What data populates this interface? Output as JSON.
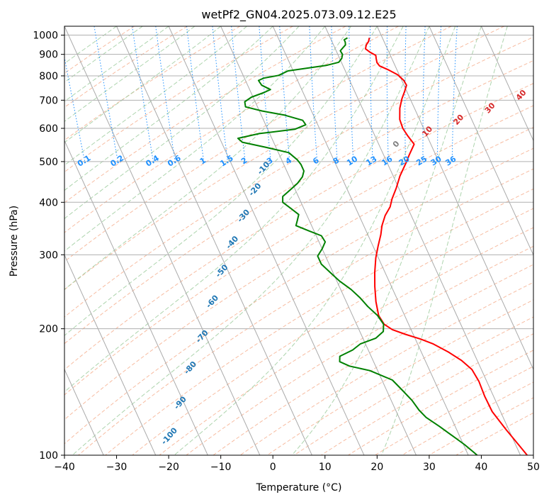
{
  "chart_data": {
    "type": "line",
    "title": "wetPf2_GN04.2025.073.09.12.E25",
    "xlabel": "Temperature (°C)",
    "ylabel": "Pressure (hPa)",
    "xlim": [
      -40,
      50
    ],
    "ylim": [
      1050,
      100
    ],
    "y_scale": "log",
    "x_ticks": [
      -40,
      -30,
      -20,
      -10,
      0,
      10,
      20,
      30,
      40,
      50
    ],
    "y_ticks": [
      1000,
      900,
      800,
      700,
      600,
      500,
      400,
      300,
      200,
      100
    ],
    "grid": true,
    "series": [
      {
        "role": "temperature",
        "color": "#ff0000",
        "points": [
          [
            17.5,
            985
          ],
          [
            17.0,
            965
          ],
          [
            16.3,
            948
          ],
          [
            15.8,
            928
          ],
          [
            16.4,
            910
          ],
          [
            17.2,
            895
          ],
          [
            17.0,
            880
          ],
          [
            16.8,
            860
          ],
          [
            17.0,
            845
          ],
          [
            18.4,
            826
          ],
          [
            19.7,
            805
          ],
          [
            20.4,
            780
          ],
          [
            20.5,
            760
          ],
          [
            19.6,
            735
          ],
          [
            18.4,
            705
          ],
          [
            17.2,
            670
          ],
          [
            16.2,
            630
          ],
          [
            16.0,
            600
          ],
          [
            16.3,
            575
          ],
          [
            16.8,
            550
          ],
          [
            15.0,
            520
          ],
          [
            13.7,
            498
          ],
          [
            11.3,
            462
          ],
          [
            9.5,
            432
          ],
          [
            7.8,
            408
          ],
          [
            6.7,
            390
          ],
          [
            5.0,
            372
          ],
          [
            3.5,
            352
          ],
          [
            2.5,
            335
          ],
          [
            1.0,
            315
          ],
          [
            -0.5,
            295
          ],
          [
            -2.0,
            272
          ],
          [
            -3.2,
            252
          ],
          [
            -4.3,
            232
          ],
          [
            -5.0,
            215
          ],
          [
            -4.7,
            205
          ],
          [
            -3.6,
            199
          ],
          [
            -1.5,
            194
          ],
          [
            1.0,
            189
          ],
          [
            3.0,
            184
          ],
          [
            5.2,
            176
          ],
          [
            7.0,
            168
          ],
          [
            8.2,
            160
          ],
          [
            8.5,
            150
          ],
          [
            8.3,
            138
          ],
          [
            8.4,
            127
          ],
          [
            9.5,
            115
          ],
          [
            10.8,
            104
          ],
          [
            11.3,
            100
          ]
        ]
      },
      {
        "role": "dewpoint",
        "color": "#008000",
        "points": [
          [
            13.3,
            985
          ],
          [
            12.5,
            975
          ],
          [
            12.5,
            962
          ],
          [
            12.3,
            948
          ],
          [
            11.5,
            932
          ],
          [
            10.8,
            918
          ],
          [
            10.9,
            900
          ],
          [
            10.4,
            880
          ],
          [
            9.5,
            862
          ],
          [
            6.8,
            847
          ],
          [
            -1.0,
            822
          ],
          [
            -3.2,
            802
          ],
          [
            -6.3,
            790
          ],
          [
            -7.5,
            780
          ],
          [
            -7.3,
            760
          ],
          [
            -6.0,
            742
          ],
          [
            -7.5,
            730
          ],
          [
            -10.3,
            712
          ],
          [
            -12.0,
            694
          ],
          [
            -12.3,
            675
          ],
          [
            -9.5,
            660
          ],
          [
            -5.5,
            645
          ],
          [
            -2.5,
            627
          ],
          [
            -2.3,
            612
          ],
          [
            -4.8,
            597
          ],
          [
            -12.0,
            583
          ],
          [
            -16.5,
            568
          ],
          [
            -16.0,
            556
          ],
          [
            -12.0,
            541
          ],
          [
            -8.0,
            525
          ],
          [
            -7.0,
            505
          ],
          [
            -6.7,
            492
          ],
          [
            -6.7,
            475
          ],
          [
            -7.5,
            460
          ],
          [
            -9.0,
            444
          ],
          [
            -11.0,
            428
          ],
          [
            -13.0,
            413
          ],
          [
            -13.5,
            400
          ],
          [
            -12.5,
            387
          ],
          [
            -11.5,
            374
          ],
          [
            -12.3,
            362
          ],
          [
            -13.0,
            352
          ],
          [
            -11.0,
            342
          ],
          [
            -9.0,
            333
          ],
          [
            -8.8,
            322
          ],
          [
            -10.0,
            310
          ],
          [
            -11.5,
            298
          ],
          [
            -11.5,
            285
          ],
          [
            -10.5,
            272
          ],
          [
            -9.5,
            260
          ],
          [
            -8.0,
            248
          ],
          [
            -7.0,
            237
          ],
          [
            -6.3,
            226
          ],
          [
            -5.2,
            215
          ],
          [
            -4.8,
            205
          ],
          [
            -5.5,
            197
          ],
          [
            -7.5,
            190
          ],
          [
            -11.0,
            184
          ],
          [
            -13.0,
            178
          ],
          [
            -16.0,
            172
          ],
          [
            -16.5,
            167
          ],
          [
            -15.0,
            163
          ],
          [
            -11.5,
            159
          ],
          [
            -8.0,
            151
          ],
          [
            -7.0,
            143
          ],
          [
            -6.0,
            135
          ],
          [
            -5.5,
            128
          ],
          [
            -4.8,
            123
          ],
          [
            -3.0,
            117
          ],
          [
            -1.3,
            111
          ],
          [
            0.2,
            106
          ],
          [
            1.2,
            102
          ],
          [
            1.7,
            100
          ]
        ]
      }
    ],
    "dry_adiabat_labels": [
      "-100",
      "-90",
      "-80",
      "-70",
      "-60",
      "-50",
      "-40",
      "-30",
      "-20",
      "-10"
    ],
    "moist_adiabat_labels": [
      "0",
      "10",
      "20",
      "30",
      "40"
    ],
    "mixing_ratio_labels": [
      "0.1",
      "0.2",
      "0.4",
      "0.6",
      "1",
      "1.5",
      "2",
      "3",
      "4",
      "6",
      "8",
      "10",
      "13",
      "16",
      "20",
      "25",
      "30",
      "36"
    ]
  },
  "colors": {
    "temperature": "#ff0000",
    "dewpoint": "#008000",
    "isotherm_grid": "#aaaaaa",
    "isobar_grid": "#b0b0b0",
    "dry_adiabat": "#f4a582",
    "moist_adiabat": "#98c998",
    "mixing_ratio": "#1e90ff",
    "mr_label": "#1e90ff",
    "dry_label": "#1f77b4",
    "moist_label": "#d62728"
  }
}
